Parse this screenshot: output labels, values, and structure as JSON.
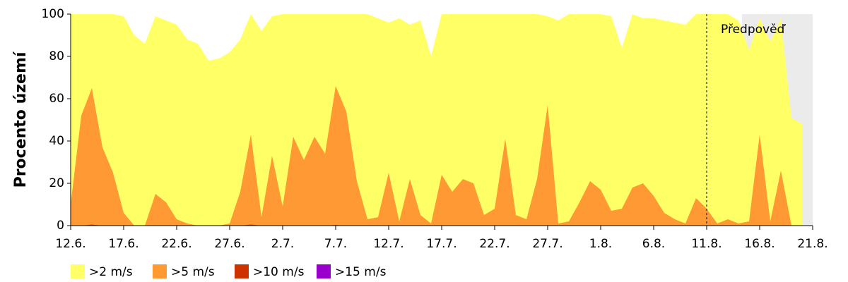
{
  "chart_data": {
    "type": "area",
    "ylabel": "Procento území",
    "categories": [
      "12.6.",
      null,
      null,
      null,
      null,
      "17.6.",
      null,
      null,
      null,
      null,
      "22.6.",
      null,
      null,
      null,
      null,
      "27.6.",
      null,
      null,
      null,
      null,
      "2.7.",
      null,
      null,
      null,
      null,
      "7.7.",
      null,
      null,
      null,
      null,
      "12.7.",
      null,
      null,
      null,
      null,
      "17.7.",
      null,
      null,
      null,
      null,
      "22.7.",
      null,
      null,
      null,
      null,
      "27.7.",
      null,
      null,
      null,
      null,
      "1.8.",
      null,
      null,
      null,
      null,
      "6.8.",
      null,
      null,
      null,
      null,
      "11.8.",
      null,
      null,
      null,
      null,
      "16.8.",
      null,
      null,
      null,
      null,
      "21.8."
    ],
    "series": [
      {
        "name": ">2 m/s",
        "color": "#ffff66",
        "values": [
          100,
          100,
          100,
          100,
          100,
          99,
          90,
          86,
          99,
          97,
          95,
          88,
          86,
          78,
          79,
          82,
          88,
          100,
          92,
          99,
          100,
          100,
          100,
          100,
          100,
          100,
          100,
          100,
          100,
          98,
          96,
          98,
          95,
          97,
          80,
          100,
          100,
          100,
          100,
          100,
          100,
          100,
          100,
          100,
          100,
          99,
          97,
          100,
          100,
          100,
          100,
          99,
          84,
          100,
          98,
          98,
          97,
          96,
          95,
          100,
          100,
          100,
          100,
          97,
          83,
          98,
          87,
          98,
          51,
          48,
          null
        ]
      },
      {
        "name": ">5 m/s",
        "color": "#ff9933",
        "values": [
          10,
          52,
          65,
          37,
          25,
          6,
          0,
          0,
          15,
          11,
          3,
          1,
          0,
          0,
          0,
          1,
          16,
          43,
          4,
          33,
          9,
          42,
          31,
          42,
          34,
          66,
          54,
          21,
          3,
          4,
          25,
          2,
          22,
          5,
          1,
          24,
          16,
          22,
          20,
          5,
          8,
          41,
          5,
          3,
          22,
          57,
          1,
          2,
          11,
          21,
          17,
          7,
          8,
          18,
          20,
          14,
          6,
          3,
          1,
          13,
          8,
          1,
          3,
          1,
          2,
          43,
          2,
          26,
          0,
          0,
          null
        ]
      },
      {
        "name": ">10 m/s",
        "color": "#cc3300",
        "values": [
          0,
          0,
          0.5,
          0,
          0,
          0,
          0,
          0,
          0,
          0,
          0,
          0,
          0,
          0,
          0,
          0,
          0,
          0.5,
          0,
          0,
          0,
          0,
          0,
          0,
          0,
          0.3,
          0,
          0,
          0,
          0,
          0,
          0,
          0,
          0,
          0,
          0,
          0,
          0,
          0,
          0,
          0,
          0,
          0,
          0,
          0,
          0,
          0,
          0,
          0,
          0,
          0,
          0,
          0,
          0,
          0,
          0,
          0,
          0,
          0,
          0,
          0,
          0,
          0,
          0,
          0,
          0,
          0,
          0,
          0,
          0,
          null
        ]
      },
      {
        "name": ">15 m/s",
        "color": "#9900cc",
        "values": [
          0,
          0,
          0,
          0,
          0,
          0,
          0,
          0,
          0,
          0,
          0,
          0,
          0,
          0,
          0,
          0,
          0,
          0,
          0,
          0,
          0,
          0,
          0,
          0,
          0,
          0,
          0,
          0,
          0,
          0,
          0,
          0,
          0,
          0,
          0,
          0,
          0,
          0,
          0,
          0,
          0,
          0,
          0,
          0,
          0,
          0,
          0,
          0,
          0,
          0,
          0,
          0,
          0,
          0,
          0,
          0,
          0,
          0,
          0,
          0,
          0,
          0,
          0,
          0,
          0,
          0,
          0,
          0,
          0,
          0,
          null
        ]
      }
    ],
    "ylim": [
      0,
      100
    ],
    "yticks": [
      0,
      20,
      40,
      60,
      80,
      100
    ],
    "annotations": [
      {
        "text": "Předpověď",
        "x": "11.8."
      }
    ]
  }
}
